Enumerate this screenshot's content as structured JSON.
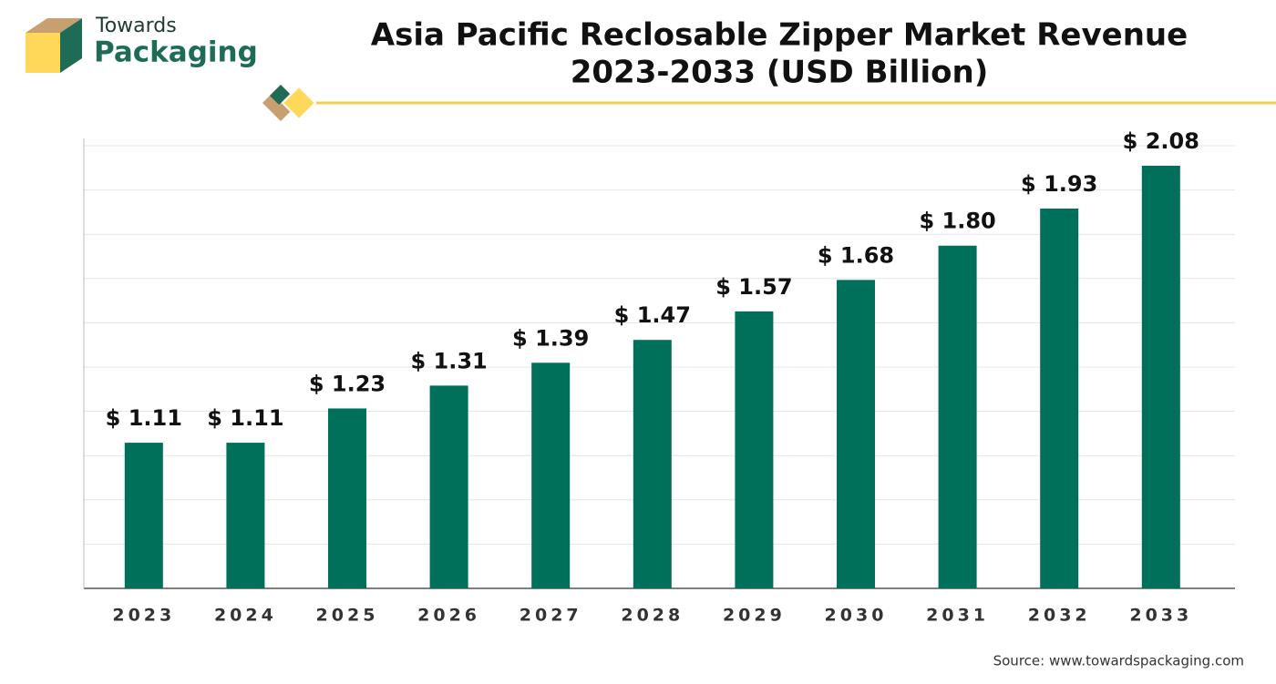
{
  "logo": {
    "line1": "Towards",
    "line2": "Packaging"
  },
  "chart_data": {
    "type": "bar",
    "title": [
      "Asia Pacific Reclosable Zipper Market Revenue",
      "2023-2033 (USD Billion)"
    ],
    "categories": [
      "2023",
      "2024",
      "2025",
      "2026",
      "2027",
      "2028",
      "2029",
      "2030",
      "2031",
      "2032",
      "2033"
    ],
    "values": [
      1.11,
      1.11,
      1.23,
      1.31,
      1.39,
      1.47,
      1.57,
      1.68,
      1.8,
      1.93,
      2.08
    ],
    "value_labels": [
      "$ 1.11",
      "$ 1.11",
      "$ 1.23",
      "$ 1.31",
      "$ 1.39",
      "$ 1.47",
      "$ 1.57",
      "$ 1.68",
      "$ 1.80",
      "$ 1.93",
      "$ 2.08"
    ],
    "color": "#00705a",
    "ylim": [
      0.6,
      2.15
    ],
    "yticks": [
      0.6,
      0.755,
      0.91,
      1.065,
      1.22,
      1.375,
      1.53,
      1.685,
      1.84,
      1.995,
      2.15
    ],
    "grid": true,
    "source": "Source: www.towardspackaging.com"
  }
}
